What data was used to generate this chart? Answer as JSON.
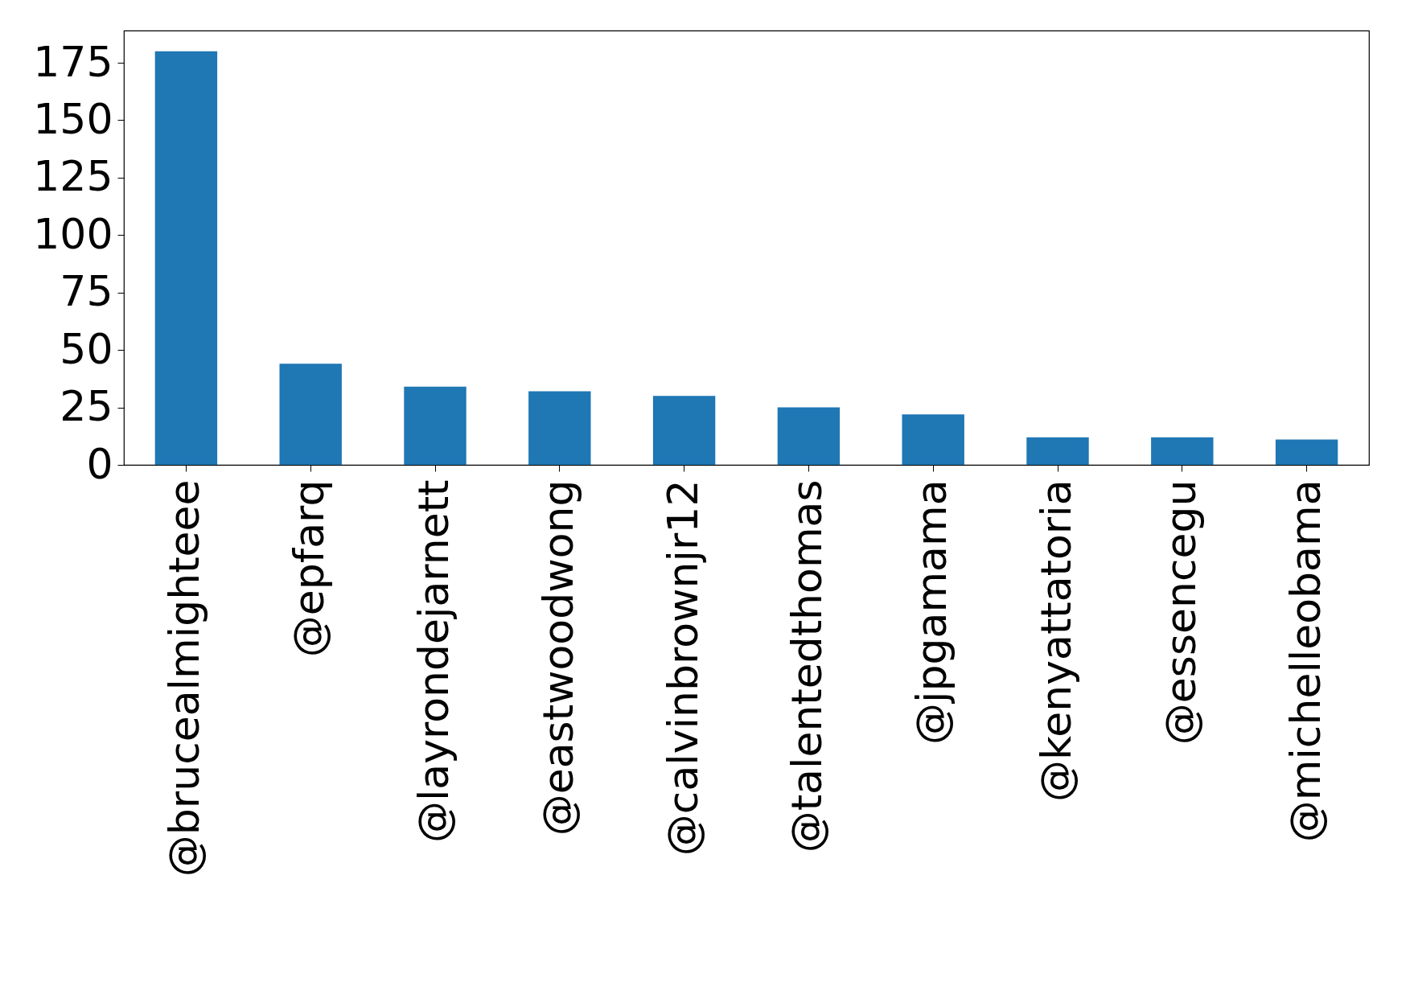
{
  "chart_data": {
    "type": "bar",
    "categories": [
      "@brucealmighteee",
      "@epfarq",
      "@layrondejarnett",
      "@eastwoodwong",
      "@calvinbrownjr12",
      "@talentedthomas",
      "@jpgamama",
      "@kenyattatoria",
      "@essencegu",
      "@michelleobama"
    ],
    "values": [
      180,
      44,
      34,
      32,
      30,
      25,
      22,
      12,
      12,
      11
    ],
    "color": "#1f77b4",
    "ylim": [
      0,
      189
    ],
    "yticks": [
      0,
      25,
      50,
      75,
      100,
      125,
      150,
      175
    ],
    "grid": false
  }
}
